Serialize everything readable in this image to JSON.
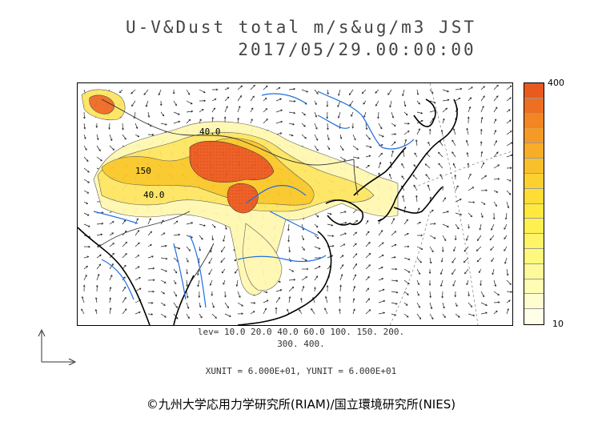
{
  "title": {
    "line1": "U-V&Dust total m/s&ug/m3 JST",
    "line2": "2017/05/29.00:00:00"
  },
  "map": {
    "contour_labels": [
      "40.0",
      "150",
      "40.0"
    ]
  },
  "colorbar": {
    "max_label": "400",
    "min_label": "10",
    "colors": [
      "#e85a1e",
      "#ee6f21",
      "#f28624",
      "#f59a27",
      "#f8ad29",
      "#fac02b",
      "#fcd12f",
      "#fede36",
      "#ffe840",
      "#fff051",
      "#fff466",
      "#fff87f",
      "#fffa99",
      "#fffcb4",
      "#fffdd0",
      "#fffee8"
    ]
  },
  "levels": {
    "line1": "lev= 10.0 20.0 40.0 60.0 100. 150. 200.",
    "line2": "300. 400."
  },
  "units_text": "XUNIT = 6.000E+01, YUNIT = 6.000E+01",
  "credit": "©九州大学応用力学研究所(RIAM)/国立環境研究所(NIES)"
}
